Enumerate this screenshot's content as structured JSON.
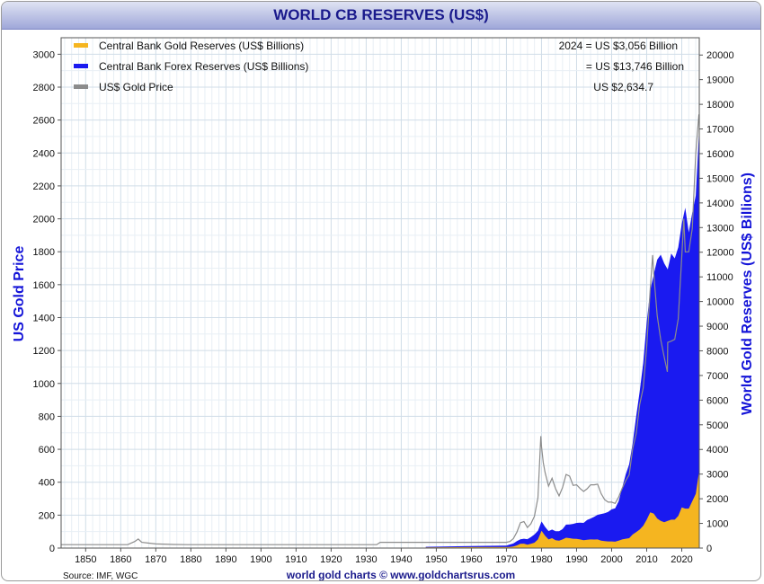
{
  "chart_data": {
    "type": "area",
    "title": "WORLD CB RESERVES (US$)",
    "ylabel_left": "US Gold Price",
    "ylabel_right": "World Gold Reserves (US$ Billions)",
    "source": "Source: IMF, WGC",
    "credit": "world gold charts © www.goldchartsrus.com",
    "xlim": [
      1843,
      2025
    ],
    "ylim_left": [
      0,
      3100
    ],
    "ylim_right": [
      0,
      20700
    ],
    "xticks": [
      1850,
      1860,
      1870,
      1880,
      1890,
      1900,
      1910,
      1920,
      1930,
      1940,
      1950,
      1960,
      1970,
      1980,
      1990,
      2000,
      2010,
      2020
    ],
    "yticks_left": [
      0,
      200,
      400,
      600,
      800,
      1000,
      1200,
      1400,
      1600,
      1800,
      2000,
      2200,
      2400,
      2600,
      2800,
      3000
    ],
    "yticks_right": [
      0,
      1000,
      2000,
      3000,
      4000,
      5000,
      6000,
      7000,
      8000,
      9000,
      10000,
      11000,
      12000,
      13000,
      14000,
      15000,
      16000,
      17000,
      18000,
      19000,
      20000
    ],
    "grid": true,
    "legend": [
      {
        "label": "Central Bank Gold Reserves (US$ Billions)",
        "value_text": "2024 = US $3,056 Billion",
        "color": "#f5b520"
      },
      {
        "label": "Central Bank Forex Reserves (US$ Billions)",
        "value_text": "= US $13,746 Billion",
        "color": "#1a1af0"
      },
      {
        "label": "US$ Gold Price",
        "value_text": "US $2,634.7",
        "color": "#8c8c8c"
      }
    ],
    "series": [
      {
        "name": "US$ Gold Price",
        "axis": "left",
        "x": [
          1843,
          1862,
          1864,
          1865,
          1866,
          1868,
          1870,
          1875,
          1879,
          1900,
          1933,
          1934,
          1946,
          1947,
          1970,
          1971,
          1972,
          1973,
          1974,
          1975,
          1976,
          1977,
          1978,
          1979,
          1979.8,
          1980,
          1980.5,
          1981,
          1982,
          1983,
          1984,
          1985,
          1986,
          1987,
          1988,
          1989,
          1990,
          1991,
          1992,
          1993,
          1994,
          1995,
          1996,
          1997,
          1998,
          1999,
          2000,
          2001,
          2002,
          2003,
          2004,
          2005,
          2006,
          2007,
          2008,
          2009,
          2010,
          2011,
          2011.7,
          2012,
          2013,
          2014,
          2015,
          2015.9,
          2016,
          2017,
          2018,
          2019,
          2020,
          2020.6,
          2021,
          2022,
          2023,
          2024,
          2024.9
        ],
        "values": [
          20.67,
          20.67,
          40,
          55,
          35,
          30,
          25,
          22,
          20.67,
          20.67,
          20.67,
          35,
          35,
          35,
          35,
          40,
          58,
          97,
          154,
          161,
          125,
          148,
          193,
          306,
          680,
          615,
          520,
          460,
          376,
          424,
          361,
          317,
          368,
          447,
          437,
          381,
          384,
          362,
          344,
          360,
          384,
          384,
          388,
          331,
          294,
          279,
          279,
          271,
          310,
          363,
          409,
          444,
          604,
          695,
          872,
          972,
          1224,
          1571,
          1780,
          1669,
          1411,
          1266,
          1160,
          1070,
          1250,
          1257,
          1268,
          1393,
          1770,
          2000,
          1799,
          1800,
          1940,
          2400,
          2634.7
        ]
      },
      {
        "name": "Central Bank Gold Reserves (US$ Billions)",
        "axis": "right",
        "x": [
          1947,
          1960,
          1970,
          1971,
          1972,
          1973,
          1974,
          1975,
          1976,
          1977,
          1978,
          1979,
          1980,
          1981,
          1982,
          1983,
          1984,
          1985,
          1986,
          1987,
          1988,
          1989,
          1990,
          1991,
          1992,
          1993,
          1994,
          1995,
          1996,
          1997,
          1998,
          1999,
          2000,
          2001,
          2002,
          2003,
          2004,
          2005,
          2006,
          2007,
          2008,
          2009,
          2010,
          2011,
          2012,
          2013,
          2014,
          2015,
          2016,
          2017,
          2018,
          2019,
          2020,
          2021,
          2022,
          2023,
          2024,
          2024.9
        ],
        "values": [
          30,
          40,
          40,
          46,
          66,
          110,
          175,
          180,
          140,
          170,
          220,
          350,
          700,
          500,
          350,
          400,
          320,
          300,
          350,
          420,
          400,
          380,
          370,
          350,
          320,
          340,
          350,
          345,
          350,
          300,
          280,
          270,
          270,
          260,
          300,
          350,
          380,
          400,
          550,
          650,
          750,
          900,
          1150,
          1450,
          1400,
          1200,
          1100,
          1050,
          1100,
          1150,
          1150,
          1300,
          1650,
          1600,
          1600,
          1900,
          2200,
          3056
        ]
      },
      {
        "name": "Central Bank Forex Reserves (US$ Billions)",
        "axis": "right",
        "x": [
          1947,
          1960,
          1970,
          1971,
          1972,
          1973,
          1974,
          1975,
          1976,
          1977,
          1978,
          1979,
          1980,
          1981,
          1982,
          1983,
          1984,
          1985,
          1986,
          1987,
          1988,
          1989,
          1990,
          1991,
          1992,
          1993,
          1994,
          1995,
          1996,
          1997,
          1998,
          1999,
          2000,
          2001,
          2002,
          2003,
          2004,
          2005,
          2006,
          2007,
          2008,
          2009,
          2010,
          2011,
          2012,
          2013,
          2014,
          2015,
          2016,
          2017,
          2018,
          2019,
          2020,
          2021,
          2022,
          2023,
          2024,
          2024.9
        ],
        "values": [
          20,
          40,
          60,
          100,
          120,
          170,
          180,
          200,
          220,
          280,
          330,
          350,
          380,
          360,
          340,
          350,
          360,
          380,
          420,
          530,
          560,
          600,
          650,
          680,
          700,
          800,
          850,
          920,
          1000,
          1080,
          1130,
          1200,
          1300,
          1350,
          1600,
          2100,
          2600,
          3000,
          3700,
          4700,
          5600,
          6600,
          8000,
          9000,
          9700,
          10500,
          10800,
          10500,
          10200,
          10800,
          10600,
          10900,
          11500,
          12200,
          11200,
          11700,
          12100,
          13746
        ]
      }
    ]
  }
}
